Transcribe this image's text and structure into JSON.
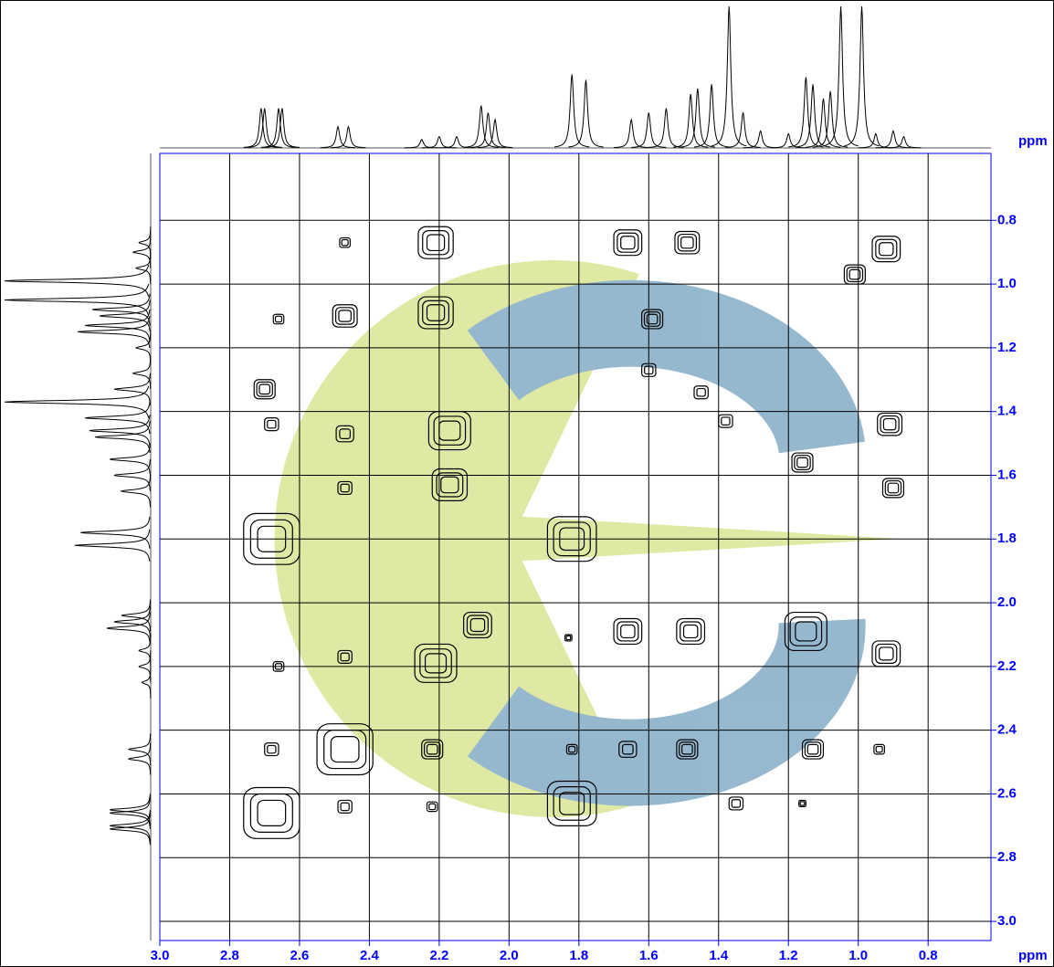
{
  "chart_data": {
    "type": "contour",
    "x_label": "ppm",
    "y_label": "ppm",
    "xlim": [
      3.0,
      0.62
    ],
    "ylim": [
      0.59,
      3.06
    ],
    "xticks": [
      {
        "value": 3,
        "label": "3.0"
      },
      2.8,
      2.6,
      2.4,
      2.2,
      {
        "value": 2,
        "label": "2.0"
      },
      1.8,
      1.6,
      1.4,
      1.2,
      {
        "value": 1,
        "label": "1.0"
      },
      0.8
    ],
    "yticks": [
      0.8,
      {
        "value": 1,
        "label": "1.0"
      },
      1.2,
      1.4,
      1.6,
      1.8,
      {
        "value": 2,
        "label": "2.0"
      },
      2.2,
      2.4,
      2.6,
      2.8,
      {
        "value": 3,
        "label": "3.0"
      }
    ],
    "grid": true,
    "color": "#000000",
    "axis_color": "#0000ff",
    "trace_color": "#555555",
    "cross_peaks": {
      "x": [
        2.68,
        2.7,
        2.68,
        2.68,
        2.66,
        2.66,
        2.68,
        2.47,
        2.47,
        2.47,
        2.47,
        2.47,
        2.47,
        2.47,
        2.21,
        2.21,
        2.17,
        2.17,
        2.21,
        2.09,
        2.22,
        2.22,
        1.82,
        1.82,
        1.82,
        1.83,
        1.66,
        1.59,
        1.66,
        1.66,
        1.48,
        1.49,
        1.49,
        1.35,
        1.38,
        1.45,
        1.15,
        1.13,
        1.16,
        0.92,
        1.01,
        0.91,
        0.9,
        0.92,
        0.94,
        1.16,
        1.6
      ],
      "y": [
        2.66,
        1.33,
        1.44,
        1.8,
        1.11,
        2.2,
        2.46,
        2.46,
        1.1,
        0.87,
        1.47,
        1.64,
        2.17,
        2.64,
        0.87,
        1.09,
        1.46,
        1.63,
        2.19,
        2.07,
        2.46,
        2.64,
        1.8,
        2.63,
        2.46,
        2.11,
        0.87,
        1.11,
        2.09,
        2.46,
        2.09,
        2.46,
        0.87,
        2.63,
        1.43,
        1.34,
        2.09,
        2.46,
        1.56,
        0.89,
        0.97,
        1.44,
        1.64,
        2.16,
        2.46,
        2.63,
        1.27
      ],
      "size": [
        0.08,
        0.03,
        0.02,
        0.08,
        0.015,
        0.015,
        0.02,
        0.08,
        0.035,
        0.015,
        0.025,
        0.02,
        0.02,
        0.02,
        0.05,
        0.05,
        0.06,
        0.05,
        0.06,
        0.04,
        0.03,
        0.015,
        0.07,
        0.07,
        0.015,
        0.01,
        0.04,
        0.03,
        0.04,
        0.025,
        0.04,
        0.03,
        0.035,
        0.02,
        0.02,
        0.02,
        0.06,
        0.03,
        0.03,
        0.04,
        0.03,
        0.035,
        0.03,
        0.04,
        0.015,
        0.01,
        0.02
      ]
    },
    "projection": {
      "x": [
        2.71,
        2.7,
        2.66,
        2.65,
        2.49,
        2.46,
        2.25,
        2.2,
        2.15,
        2.08,
        2.06,
        2.04,
        1.82,
        1.78,
        1.65,
        1.6,
        1.55,
        1.48,
        1.46,
        1.42,
        1.37,
        1.33,
        1.28,
        1.2,
        1.15,
        1.13,
        1.1,
        1.08,
        1.05,
        0.99,
        0.95,
        0.9,
        0.87
      ],
      "intensity": [
        0.28,
        0.28,
        0.28,
        0.28,
        0.15,
        0.15,
        0.06,
        0.08,
        0.08,
        0.3,
        0.25,
        0.2,
        0.52,
        0.48,
        0.2,
        0.25,
        0.28,
        0.38,
        0.42,
        0.45,
        1.0,
        0.25,
        0.12,
        0.1,
        0.5,
        0.45,
        0.35,
        0.4,
        1.0,
        1.0,
        0.1,
        0.12,
        0.08
      ]
    }
  }
}
